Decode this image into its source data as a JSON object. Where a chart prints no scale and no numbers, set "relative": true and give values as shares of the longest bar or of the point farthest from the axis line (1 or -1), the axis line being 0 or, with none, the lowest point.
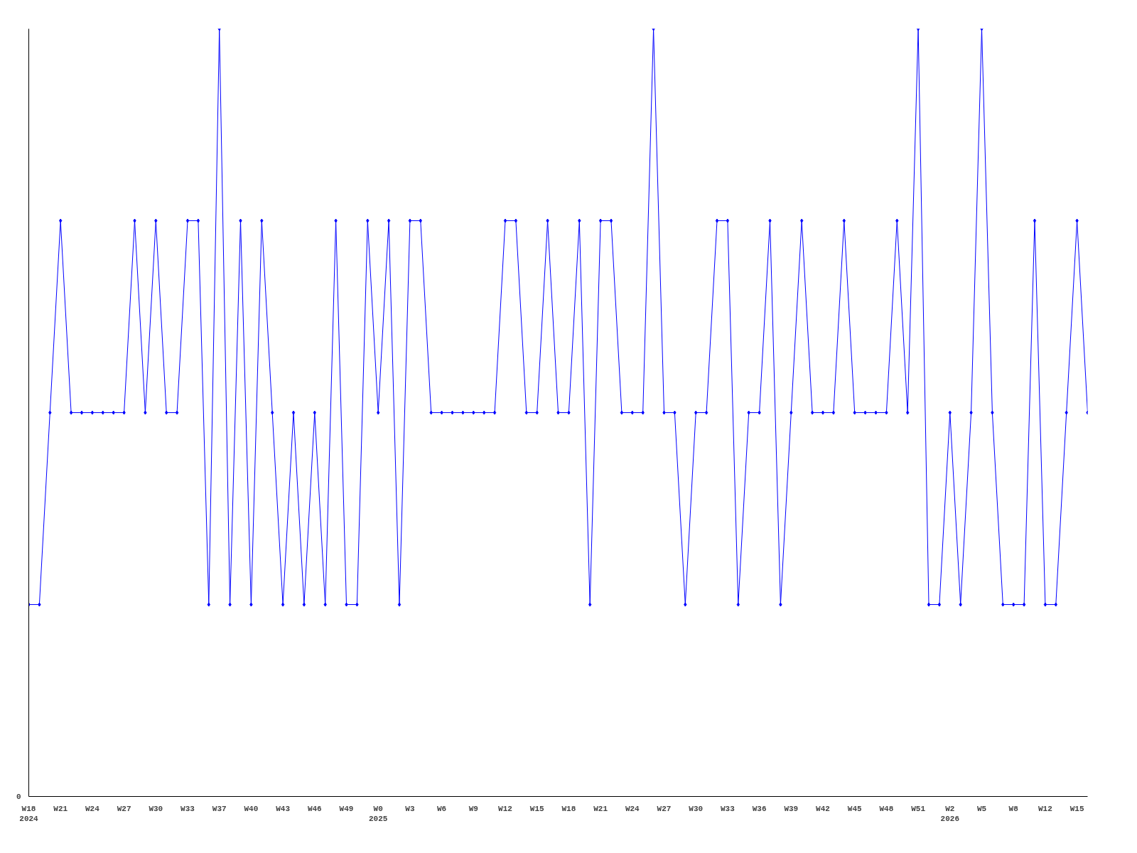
{
  "chart_data": {
    "type": "line",
    "relative": true,
    "annotations": [
      "0"
    ],
    "marker": "diamond",
    "grid": false,
    "categories": [
      "W18\n2024",
      null,
      null,
      "W21",
      null,
      null,
      "W24",
      null,
      null,
      "W27",
      null,
      null,
      "W30",
      null,
      null,
      "W33",
      null,
      null,
      "W37",
      null,
      null,
      "W40",
      null,
      null,
      "W43",
      null,
      null,
      "W46",
      null,
      null,
      "W49",
      null,
      null,
      "W0\n2025",
      null,
      null,
      "W3",
      null,
      null,
      "W6",
      null,
      null,
      "W9",
      null,
      null,
      "W12",
      null,
      null,
      "W15",
      null,
      null,
      "W18",
      null,
      null,
      "W21",
      null,
      null,
      "W24",
      null,
      null,
      "W27",
      null,
      null,
      "W30",
      null,
      null,
      "W33",
      null,
      null,
      "W36",
      null,
      null,
      "W39",
      null,
      null,
      "W42",
      null,
      null,
      "W45",
      null,
      null,
      "W48",
      null,
      null,
      "W51",
      null,
      null,
      "W2\n2026",
      null,
      null,
      "W5",
      null,
      null,
      "W8",
      null,
      null,
      "W12",
      null,
      null,
      "W15",
      null
    ],
    "series": [
      {
        "color": "#0000ff",
        "values": [
          0.25,
          0.25,
          0.5,
          0.75,
          0.5,
          0.5,
          0.5,
          0.5,
          0.5,
          0.5,
          0.75,
          0.5,
          0.75,
          0.5,
          0.5,
          0.75,
          0.75,
          0.25,
          1,
          0.25,
          0.75,
          0.25,
          0.75,
          0.5,
          0.25,
          0.5,
          0.25,
          0.5,
          0.25,
          0.75,
          0.25,
          0.25,
          0.75,
          0.5,
          0.75,
          0.25,
          0.75,
          0.75,
          0.5,
          0.5,
          0.5,
          0.5,
          0.5,
          0.5,
          0.5,
          0.75,
          0.75,
          0.5,
          0.5,
          0.75,
          0.5,
          0.5,
          0.75,
          0.25,
          0.75,
          0.75,
          0.5,
          0.5,
          0.5,
          1,
          0.5,
          0.5,
          0.25,
          0.5,
          0.5,
          0.75,
          0.75,
          0.25,
          0.5,
          0.5,
          0.75,
          0.25,
          0.5,
          0.75,
          0.5,
          0.5,
          0.5,
          0.75,
          0.5,
          0.5,
          0.5,
          0.5,
          0.75,
          0.5,
          1,
          0.25,
          0.25,
          0.5,
          0.25,
          0.5,
          1,
          0.5,
          0.25,
          0.25,
          0.25,
          0.75,
          0.25,
          0.25,
          0.5,
          0.75,
          0.5
        ]
      }
    ]
  }
}
